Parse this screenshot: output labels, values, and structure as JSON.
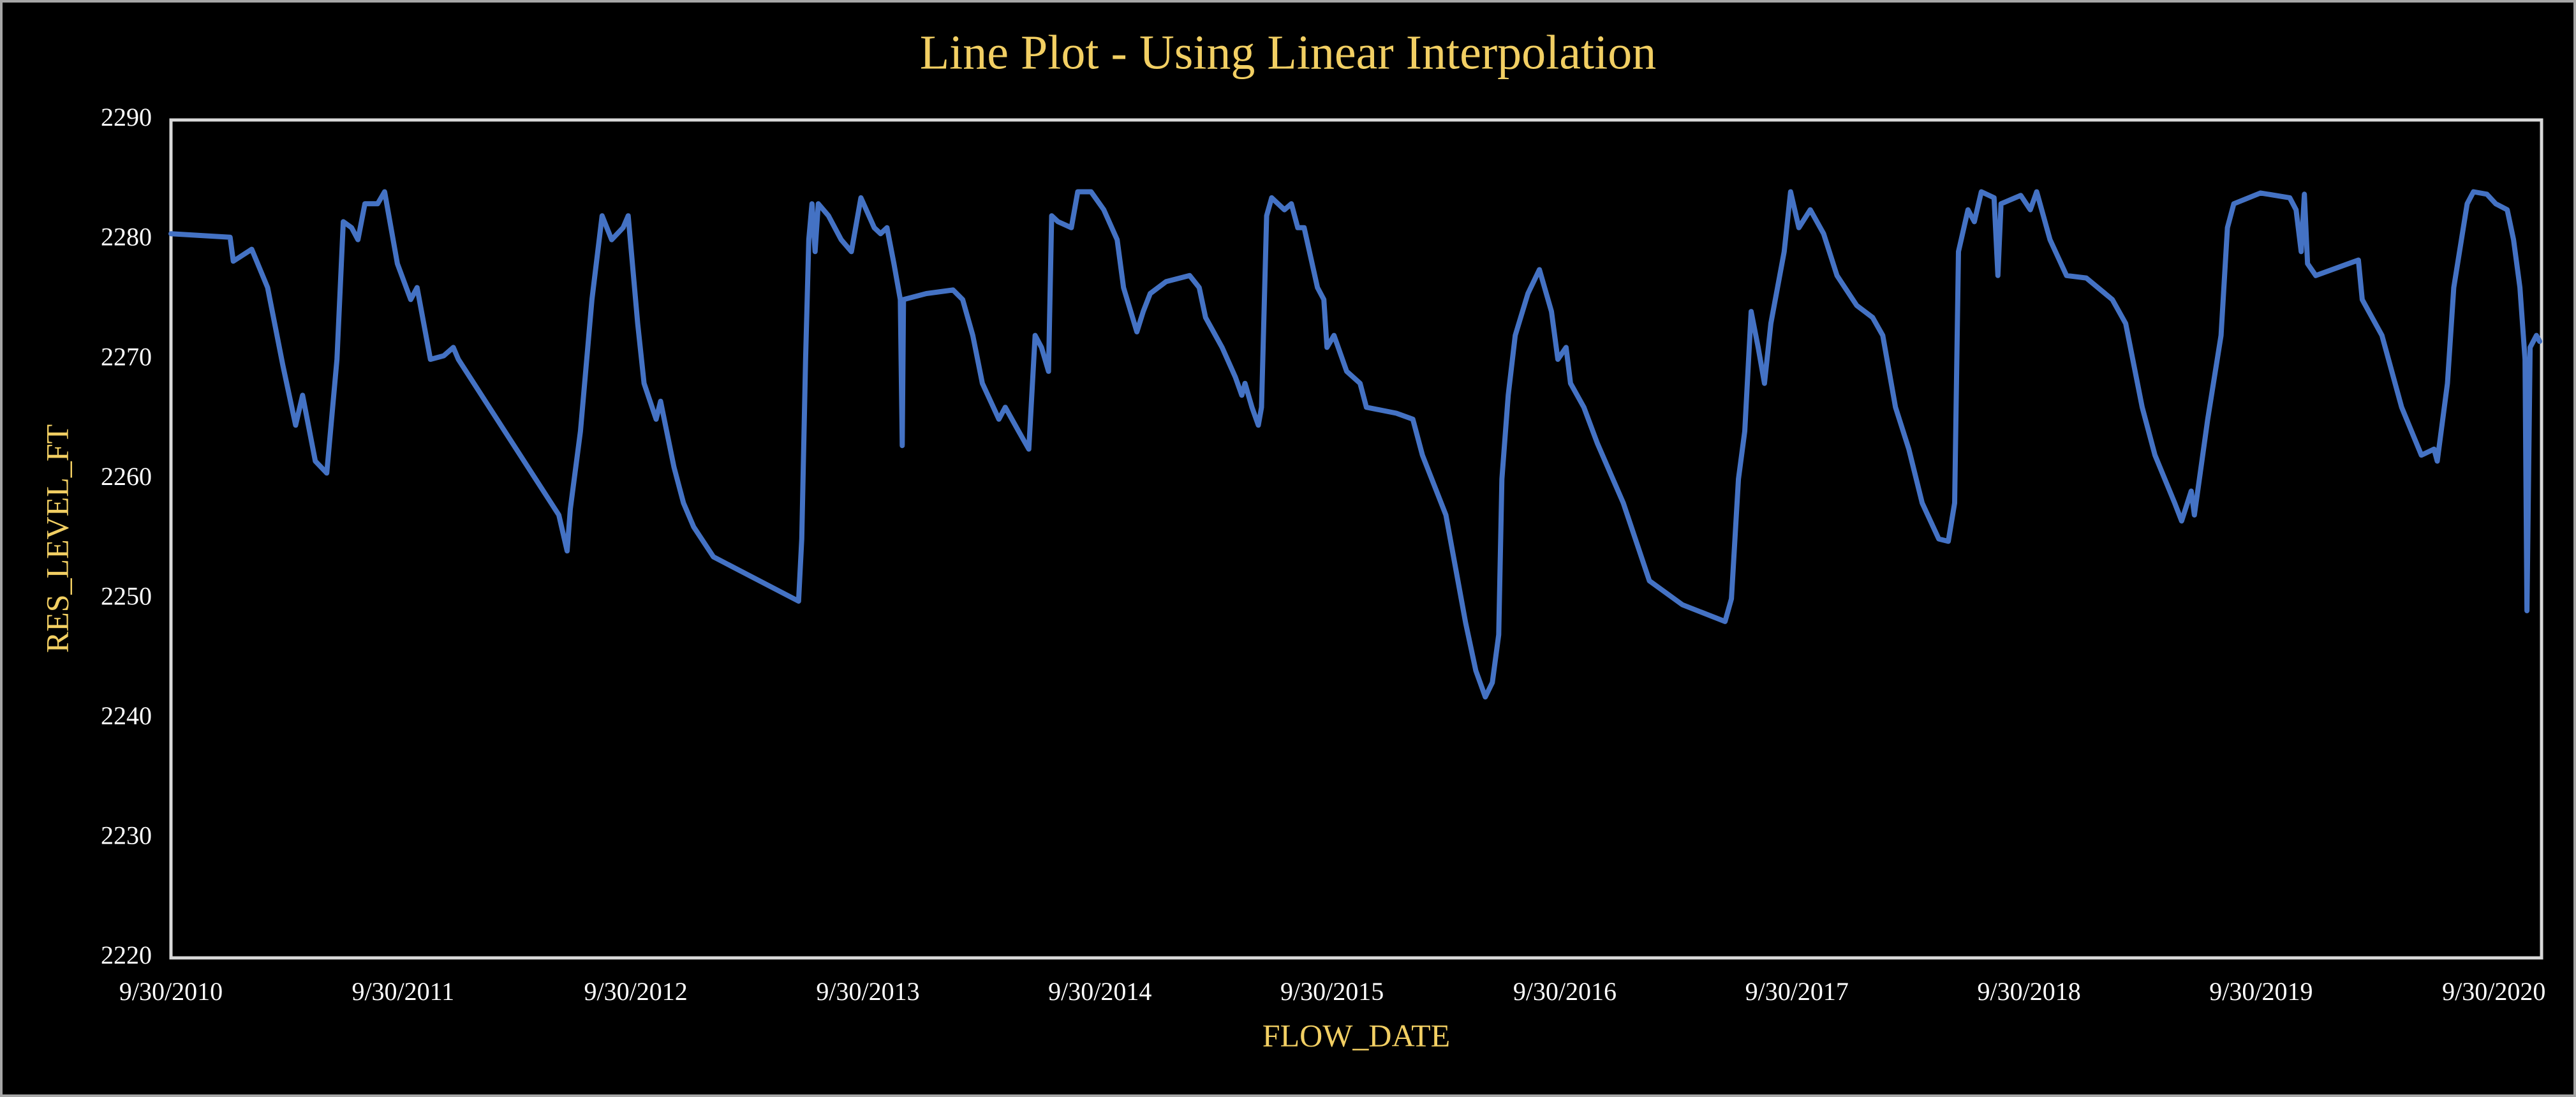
{
  "chart_data": {
    "type": "line",
    "title": "Line Plot - Using Linear Interpolation",
    "x_label": "FLOW_DATE",
    "y_label": "RES_LEVEL_FT",
    "color": "#4472c4",
    "grid": false,
    "xlim": [
      "2010-09-30",
      "2020-12-14"
    ],
    "xticks": [
      {
        "value": "2010-09-30",
        "label": "9/30/2010"
      },
      {
        "value": "2011-09-30",
        "label": "9/30/2011"
      },
      {
        "value": "2012-09-30",
        "label": "9/30/2012"
      },
      {
        "value": "2013-09-30",
        "label": "9/30/2013"
      },
      {
        "value": "2014-09-30",
        "label": "9/30/2014"
      },
      {
        "value": "2015-09-30",
        "label": "9/30/2015"
      },
      {
        "value": "2016-09-30",
        "label": "9/30/2016"
      },
      {
        "value": "2017-09-30",
        "label": "9/30/2017"
      },
      {
        "value": "2018-09-30",
        "label": "9/30/2018"
      },
      {
        "value": "2019-09-30",
        "label": "9/30/2019"
      },
      {
        "value": "2020-09-30",
        "label": "9/30/2020"
      }
    ],
    "ylim": [
      2220,
      2290
    ],
    "yticks": [
      2220,
      2230,
      2240,
      2250,
      2260,
      2270,
      2280,
      2290
    ],
    "x": [
      "2010-09-30",
      "2011-01-01",
      "2011-01-06",
      "2011-02-04",
      "2011-03-01",
      "2011-03-25",
      "2011-04-14",
      "2011-04-25",
      "2011-05-15",
      "2011-06-02",
      "2011-06-18",
      "2011-06-28",
      "2011-07-11",
      "2011-07-21",
      "2011-08-01",
      "2011-08-21",
      "2011-09-01",
      "2011-09-21",
      "2011-10-12",
      "2011-10-22",
      "2011-11-12",
      "2011-12-03",
      "2011-12-18",
      "2011-12-26",
      "2012-06-01",
      "2012-06-14",
      "2012-06-19",
      "2012-07-05",
      "2012-07-23",
      "2012-08-08",
      "2012-08-23",
      "2012-09-10",
      "2012-09-18",
      "2012-10-03",
      "2012-10-13",
      "2012-11-01",
      "2012-11-08",
      "2012-11-29",
      "2012-12-14",
      "2012-12-30",
      "2013-01-30",
      "2013-06-13",
      "2013-06-18",
      "2013-06-24",
      "2013-06-29",
      "2013-07-04",
      "2013-07-09",
      "2013-07-14",
      "2013-07-30",
      "2013-08-19",
      "2013-09-04",
      "2013-09-19",
      "2013-10-10",
      "2013-10-20",
      "2013-10-30",
      "2013-11-10",
      "2013-11-20",
      "2013-11-23",
      "2013-11-25",
      "2013-12-31",
      "2014-02-11",
      "2014-02-26",
      "2014-03-14",
      "2014-03-29",
      "2014-04-24",
      "2014-05-04",
      "2014-05-25",
      "2014-06-10",
      "2014-06-20",
      "2014-06-30",
      "2014-07-11",
      "2014-07-16",
      "2014-07-26",
      "2014-08-16",
      "2014-08-26",
      "2014-09-16",
      "2014-10-06",
      "2014-10-27",
      "2014-11-06",
      "2014-11-27",
      "2014-12-07",
      "2014-12-18",
      "2015-01-12",
      "2015-02-18",
      "2015-03-05",
      "2015-03-15",
      "2015-04-10",
      "2015-05-01",
      "2015-05-11",
      "2015-05-16",
      "2015-05-27",
      "2015-06-06",
      "2015-06-11",
      "2015-06-19",
      "2015-06-27",
      "2015-07-17",
      "2015-07-28",
      "2015-08-07",
      "2015-08-17",
      "2015-09-07",
      "2015-09-17",
      "2015-09-22",
      "2015-10-03",
      "2015-10-23",
      "2015-11-13",
      "2015-11-23",
      "2016-01-09",
      "2016-02-04",
      "2016-02-19",
      "2016-03-27",
      "2016-04-27",
      "2016-05-13",
      "2016-05-28",
      "2016-06-08",
      "2016-06-18",
      "2016-06-23",
      "2016-07-03",
      "2016-07-14",
      "2016-08-03",
      "2016-08-21",
      "2016-09-09",
      "2016-09-19",
      "2016-10-02",
      "2016-10-09",
      "2016-10-30",
      "2016-11-20",
      "2016-12-31",
      "2017-02-10",
      "2017-04-03",
      "2017-06-09",
      "2017-06-19",
      "2017-06-30",
      "2017-07-10",
      "2017-07-20",
      "2017-07-31",
      "2017-08-10",
      "2017-08-20",
      "2017-09-10",
      "2017-09-20",
      "2017-10-03",
      "2017-10-21",
      "2017-11-11",
      "2017-12-02",
      "2018-01-02",
      "2018-01-27",
      "2018-02-12",
      "2018-03-04",
      "2018-03-25",
      "2018-04-15",
      "2018-05-11",
      "2018-05-26",
      "2018-06-05",
      "2018-06-11",
      "2018-06-26",
      "2018-07-06",
      "2018-07-17",
      "2018-08-06",
      "2018-08-12",
      "2018-08-17",
      "2018-09-17",
      "2018-10-02",
      "2018-10-12",
      "2018-11-02",
      "2018-11-28",
      "2018-12-29",
      "2019-02-08",
      "2019-03-01",
      "2019-03-27",
      "2019-04-16",
      "2019-05-17",
      "2019-05-28",
      "2019-06-12",
      "2019-06-17",
      "2019-07-08",
      "2019-07-29",
      "2019-08-08",
      "2019-08-18",
      "2019-09-29",
      "2019-11-14",
      "2019-11-24",
      "2019-12-02",
      "2019-12-07",
      "2019-12-12",
      "2019-12-25",
      "2020-03-01",
      "2020-03-07",
      "2020-04-07",
      "2020-05-08",
      "2020-06-08",
      "2020-06-28",
      "2020-07-03",
      "2020-07-19",
      "2020-07-29",
      "2020-08-19",
      "2020-08-29",
      "2020-09-19",
      "2020-10-03",
      "2020-10-21",
      "2020-10-31",
      "2020-11-10",
      "2020-11-18",
      "2020-11-21",
      "2020-11-26",
      "2020-12-06",
      "2020-12-11"
    ],
    "values": [
      2280.5,
      2280.2,
      2278.2,
      2279.2,
      2276,
      2269.5,
      2264.5,
      2267,
      2261.5,
      2260.5,
      2270,
      2281.5,
      2281,
      2280,
      2283,
      2283,
      2284,
      2278,
      2275,
      2276,
      2270,
      2270.3,
      2271,
      2270,
      2257,
      2254,
      2257.5,
      2264,
      2275,
      2282,
      2280,
      2281,
      2282,
      2273,
      2268,
      2265,
      2266.5,
      2261,
      2258,
      2256,
      2253.5,
      2249.8,
      2255,
      2270,
      2280,
      2283,
      2279,
      2283,
      2282,
      2280,
      2279,
      2283.5,
      2281,
      2280.5,
      2281,
      2278,
      2275,
      2262.8,
      2275,
      2275.5,
      2275.8,
      2275,
      2272,
      2268,
      2265,
      2266,
      2264,
      2262.5,
      2272,
      2271,
      2269,
      2282,
      2281.5,
      2281,
      2284,
      2284,
      2282.5,
      2280,
      2276,
      2272.3,
      2274,
      2275.5,
      2276.5,
      2277,
      2276,
      2273.5,
      2271,
      2268.5,
      2267,
      2268,
      2266,
      2264.5,
      2266,
      2282,
      2283.5,
      2282.5,
      2283,
      2281,
      2281,
      2276,
      2275,
      2271,
      2272,
      2269,
      2268,
      2266,
      2265.5,
      2265,
      2262,
      2257,
      2248,
      2244,
      2241.8,
      2243,
      2247,
      2260,
      2267,
      2272,
      2275.5,
      2277.5,
      2274,
      2270,
      2271,
      2268,
      2266,
      2263,
      2258,
      2251.5,
      2249.5,
      2248.1,
      2250,
      2260,
      2264,
      2274,
      2271,
      2268,
      2273,
      2279,
      2284,
      2281,
      2282.5,
      2280.5,
      2277,
      2274.5,
      2273.5,
      2272,
      2266,
      2262.5,
      2258,
      2255,
      2254.8,
      2258,
      2279,
      2282.5,
      2281.5,
      2284,
      2283.5,
      2277,
      2283,
      2283.7,
      2282.5,
      2284,
      2280,
      2277,
      2276.8,
      2275,
      2273,
      2266,
      2262,
      2258,
      2256.5,
      2259,
      2257,
      2265,
      2272,
      2281,
      2283,
      2283.9,
      2283.5,
      2282.5,
      2279,
      2283.8,
      2278,
      2277,
      2278.3,
      2275,
      2272,
      2266,
      2262,
      2262.5,
      2261.5,
      2268,
      2276,
      2283,
      2284,
      2283.8,
      2283,
      2282.5,
      2280,
      2276,
      2270,
      2249,
      2271,
      2272,
      2271.5
    ]
  }
}
